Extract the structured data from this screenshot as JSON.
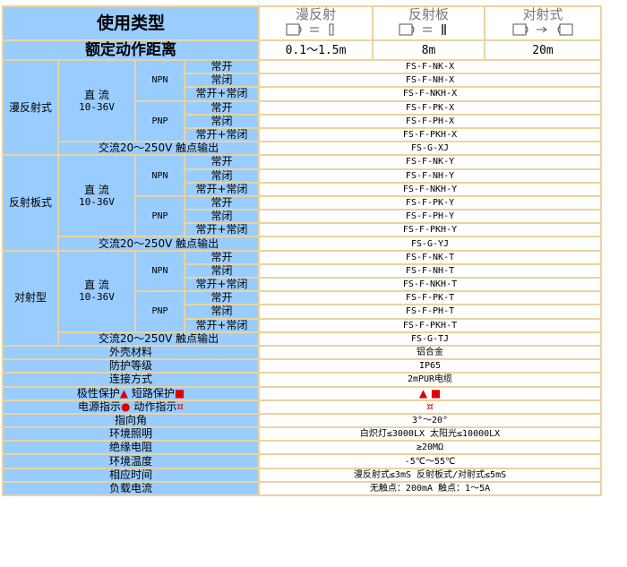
{
  "header": {
    "type_label": "使用类型",
    "distance_label": "额定动作距离",
    "modes": [
      {
        "name": "漫反射",
        "icon": "diffuse-sensor-icon",
        "distance": "0.1～1.5m"
      },
      {
        "name": "反射板",
        "icon": "reflector-sensor-icon",
        "distance": "8m"
      },
      {
        "name": "对射式",
        "icon": "through-beam-sensor-icon",
        "distance": "20m"
      }
    ]
  },
  "groups": [
    {
      "name": "漫反射式",
      "dc": "直 流",
      "dc_voltage": "10-36V",
      "npn": "NPN",
      "pnp": "PNP",
      "outputs": [
        "常开",
        "常闭",
        "常开+常闭",
        "常开",
        "常闭",
        "常开+常闭"
      ],
      "models": [
        "FS-F-NK-X",
        "FS-F-NH-X",
        "FS-F-NKH-X",
        "FS-F-PK-X",
        "FS-F-PH-X",
        "FS-F-PKH-X"
      ],
      "ac_label": "交流20～250V 触点输出",
      "ac_model": "FS-G-XJ"
    },
    {
      "name": "反射板式",
      "dc": "直 流",
      "dc_voltage": "10-36V",
      "npn": "NPN",
      "pnp": "PNP",
      "outputs": [
        "常开",
        "常闭",
        "常开+常闭",
        "常开",
        "常闭",
        "常开+常闭"
      ],
      "models": [
        "FS-F-NK-Y",
        "FS-F-NH-Y",
        "FS-F-NKH-Y",
        "FS-F-PK-Y",
        "FS-F-PH-Y",
        "FS-F-PKH-Y"
      ],
      "ac_label": "交流20～250V 触点输出",
      "ac_model": "FS-G-YJ"
    },
    {
      "name": "对射型",
      "dc": "直 流",
      "dc_voltage": "10-36V",
      "npn": "NPN",
      "pnp": "PNP",
      "outputs": [
        "常开",
        "常闭",
        "常开+常闭",
        "常开",
        "常闭",
        "常开+常闭"
      ],
      "models": [
        "FS-F-NK-T",
        "FS-F-NH-T",
        "FS-F-NKH-T",
        "FS-F-PK-T",
        "FS-F-PH-T",
        "FS-F-PKH-T"
      ],
      "ac_label": "交流20～250V 触点输出",
      "ac_model": "FS-G-TJ"
    }
  ],
  "specs": [
    {
      "label": "外壳材料",
      "value": "铝合金"
    },
    {
      "label": "防护等级",
      "value": "IP65"
    },
    {
      "label": "连接方式",
      "value": "2mPUR电缆"
    },
    {
      "label": "极性保护",
      "label2": "短路保护",
      "marker1": "▲",
      "marker2": "■",
      "value": "▲ ■",
      "kind": "protect"
    },
    {
      "label": "电源指示",
      "label2": "动作指示",
      "marker1": "●",
      "marker2": "¤",
      "value": "¤",
      "kind": "indicator"
    },
    {
      "label": "指向角",
      "value": "3°～20°"
    },
    {
      "label": "环境照明",
      "value": "白炽灯≤3000LX 太阳光≤10000LX"
    },
    {
      "label": "绝缘电阻",
      "value": "≥20MΩ"
    },
    {
      "label": "环境温度",
      "value": "-5℃～55℃"
    },
    {
      "label": "相应时间",
      "value": "漫反射式≤3mS 反射板式/对射式≤5mS"
    },
    {
      "label": "负载电流",
      "value": "无触点：200mA 触点：1～5A"
    }
  ],
  "colors": {
    "label_bg": "#99ccff",
    "border": "#ead3a0",
    "marker": "#e00000"
  }
}
